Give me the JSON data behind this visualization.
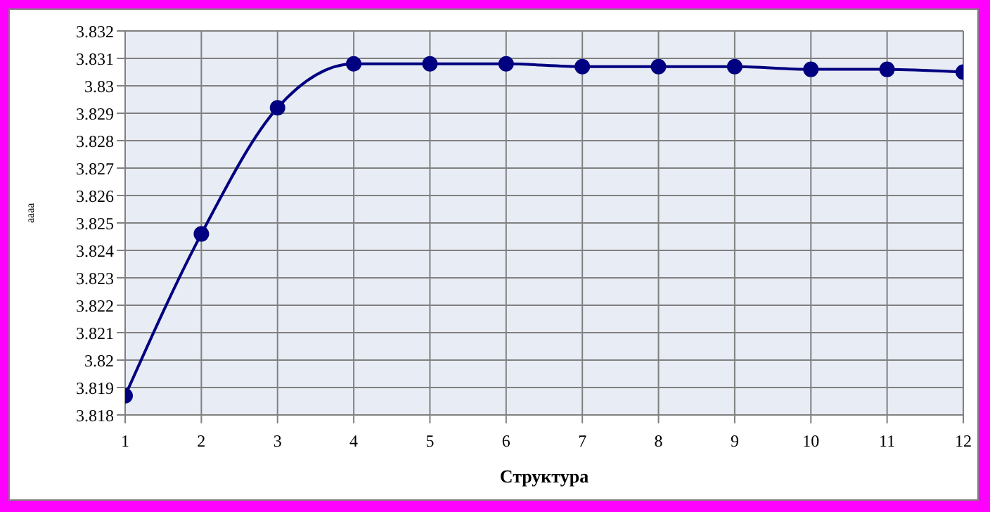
{
  "chart_data": {
    "type": "line",
    "xlabel": "Структура",
    "ylabel": "аааа",
    "x": [
      1,
      2,
      3,
      4,
      5,
      6,
      7,
      8,
      9,
      10,
      11,
      12
    ],
    "series": [
      {
        "color": "#000080",
        "values": [
          3.8187,
          3.8246,
          3.8292,
          3.8308,
          3.8308,
          3.8308,
          3.8307,
          3.8307,
          3.8307,
          3.8306,
          3.8306,
          3.8305
        ]
      }
    ],
    "xlim": [
      1,
      12
    ],
    "xticks": [
      1,
      2,
      3,
      4,
      5,
      6,
      7,
      8,
      9,
      10,
      11,
      12
    ],
    "ylim": [
      3.818,
      3.832
    ],
    "yticks": [
      3.818,
      3.819,
      3.82,
      3.821,
      3.822,
      3.823,
      3.824,
      3.825,
      3.826,
      3.827,
      3.828,
      3.829,
      3.83,
      3.831,
      3.832
    ],
    "grid": true,
    "marker": "circle",
    "line_style": "solid",
    "legend": false
  }
}
